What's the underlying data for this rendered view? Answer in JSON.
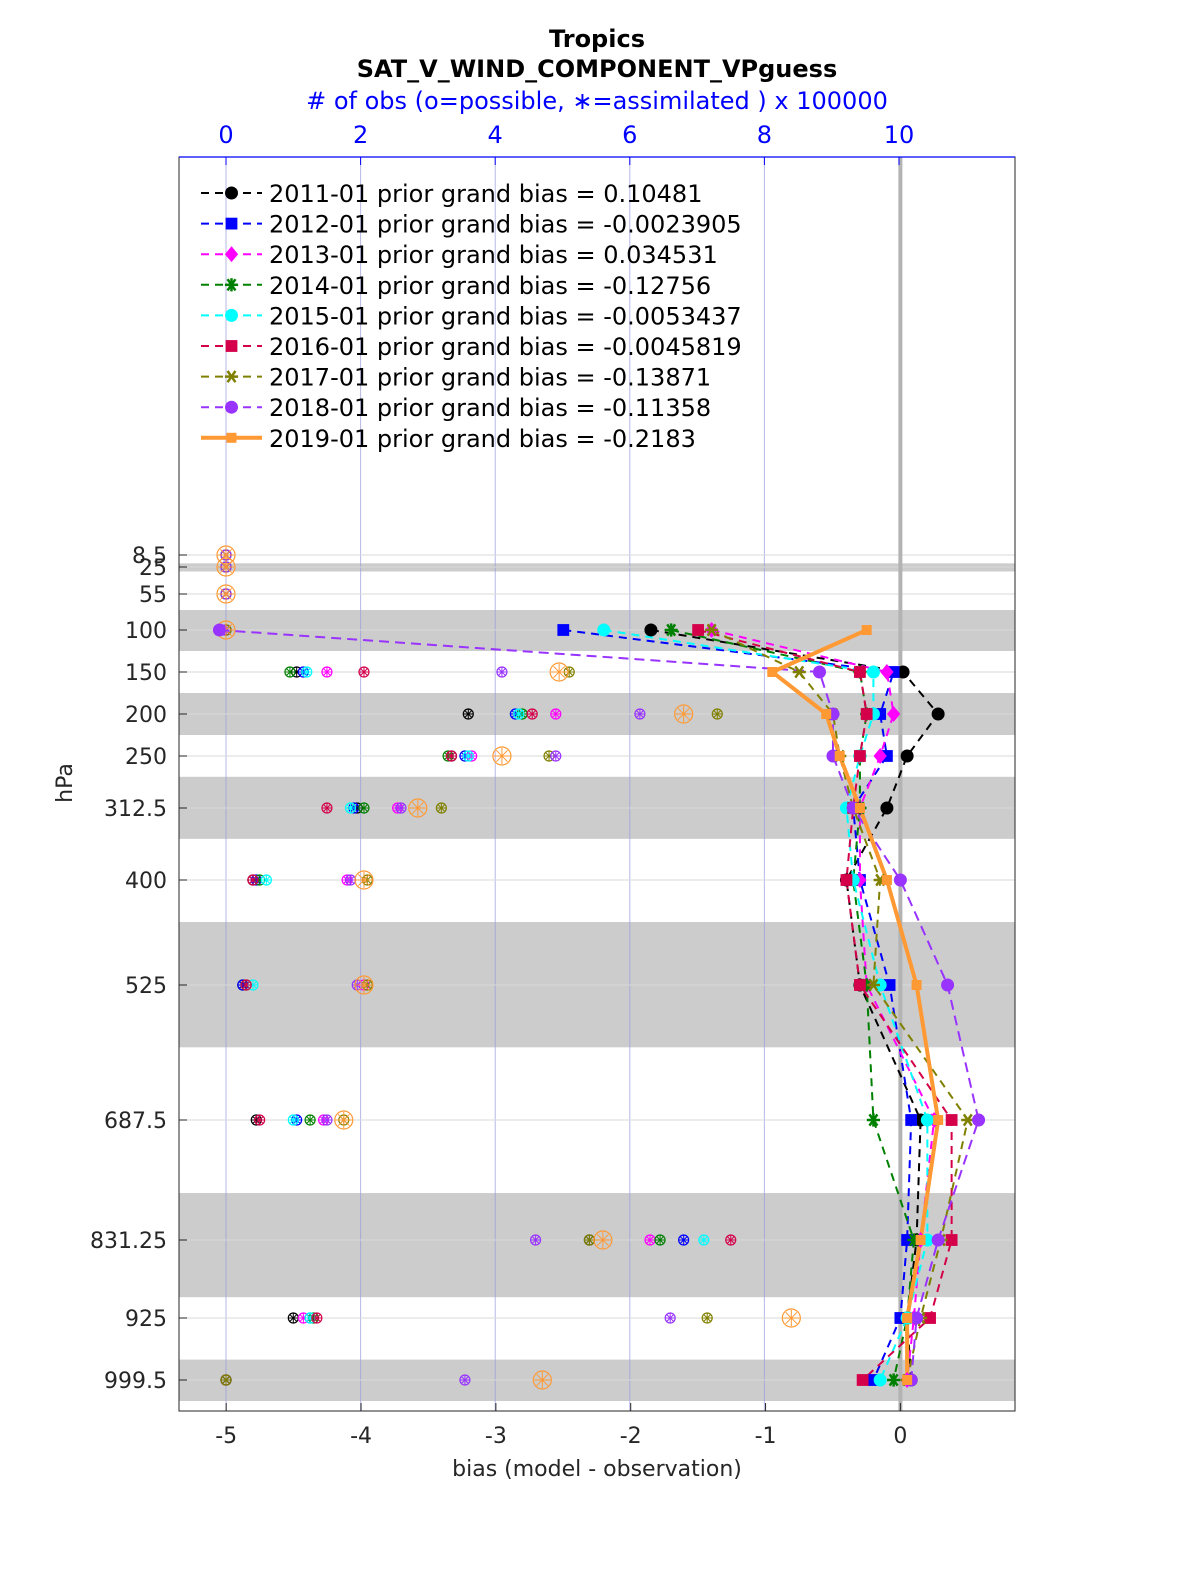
{
  "chart_data": {
    "type": "line",
    "title": "Tropics",
    "subtitle": "SAT_V_WIND_COMPONENT_VPguess",
    "top_axis_label": "# of obs (o=possible, ∗=assimilated ) x 100000",
    "xlabel": "bias (model - observation)",
    "ylabel": "hPa",
    "xlim": [
      -5.35,
      0.85
    ],
    "x_ticks": [
      "-5",
      "-4",
      "-3",
      "-2",
      "-1",
      "0"
    ],
    "x_tick_values": [
      -5,
      -4,
      -3,
      -2,
      -1,
      0
    ],
    "top_ticks": [
      "0",
      "2",
      "4",
      "6",
      "8",
      "10"
    ],
    "top_tick_values": [
      0,
      2,
      4,
      6,
      8,
      10
    ],
    "y_levels": [
      8.5,
      25,
      55,
      100,
      150,
      200,
      250,
      312.5,
      400,
      525,
      687.5,
      831.25,
      925,
      999.5
    ],
    "y_tick_labels": [
      "8.5",
      "25",
      "55",
      "100",
      "150",
      "200",
      "250",
      "312.5",
      "400",
      "525",
      "687.5",
      "831.25",
      "925",
      "999.5"
    ],
    "shaded_bands_hPa": [
      [
        20,
        30
      ],
      [
        75,
        125
      ],
      [
        175,
        225
      ],
      [
        275,
        350
      ],
      [
        450,
        600
      ],
      [
        775,
        900
      ],
      [
        975,
        1025
      ]
    ],
    "zero_line": 0,
    "legend_position": "top-left",
    "series": [
      {
        "name": "2011-01 prior grand bias = 0.10481",
        "color": "#000000",
        "marker": "circle",
        "dash": "8,6",
        "width": 2,
        "bias": [
          null,
          null,
          null,
          -1.85,
          0.02,
          0.28,
          0.05,
          -0.1,
          -0.4,
          -0.3,
          0.15,
          0.12,
          0.05,
          0.08
        ],
        "obs_possible": [
          0,
          0,
          0,
          0,
          1.05,
          3.6,
          3.35,
          1.95,
          0.4,
          0.25,
          0.45,
          5.4,
          1.0,
          0
        ]
      },
      {
        "name": "2012-01 prior grand bias = -0.0023905",
        "color": "#0000ff",
        "marker": "square",
        "dash": "8,6",
        "width": 2,
        "bias": [
          null,
          null,
          null,
          -2.5,
          -0.05,
          -0.15,
          -0.1,
          -0.35,
          -0.3,
          -0.08,
          0.08,
          0.05,
          0.0,
          -0.2
        ],
        "obs_possible": [
          0,
          0,
          0,
          0,
          1.15,
          4.3,
          3.55,
          1.9,
          0.45,
          0.25,
          1.05,
          6.8,
          1.25,
          0
        ]
      },
      {
        "name": "2013-01 prior grand bias = 0.034531",
        "color": "#ff00ff",
        "marker": "diamond",
        "dash": "8,6",
        "width": 2,
        "bias": [
          null,
          null,
          null,
          -1.4,
          -0.1,
          -0.05,
          -0.15,
          -0.3,
          -0.3,
          -0.25,
          0.25,
          0.15,
          0.1,
          0.05
        ],
        "obs_possible": [
          0,
          0,
          0,
          0,
          1.5,
          4.9,
          3.65,
          2.55,
          1.8,
          2.05,
          1.45,
          6.3,
          1.15,
          0
        ]
      },
      {
        "name": "2014-01 prior grand bias = -0.12756",
        "color": "#008000",
        "marker": "star",
        "dash": "8,6",
        "width": 2,
        "bias": [
          null,
          null,
          null,
          -1.7,
          -0.3,
          -0.25,
          -0.3,
          -0.3,
          -0.35,
          -0.25,
          -0.2,
          0.1,
          0.05,
          -0.05
        ],
        "obs_possible": [
          0,
          0,
          0,
          0,
          0.95,
          4.4,
          3.3,
          2.05,
          0.5,
          0.3,
          1.25,
          6.45,
          1.3,
          0
        ]
      },
      {
        "name": "2015-01 prior grand bias = -0.0053437",
        "color": "#00ffff",
        "marker": "circle",
        "dash": "8,6",
        "width": 2,
        "bias": [
          null,
          null,
          null,
          -2.2,
          -0.2,
          -0.2,
          -0.3,
          -0.4,
          -0.35,
          -0.15,
          0.2,
          0.2,
          0.05,
          -0.15
        ],
        "obs_possible": [
          0,
          0,
          0,
          0,
          1.2,
          4.35,
          3.6,
          1.85,
          0.6,
          0.4,
          1.0,
          7.1,
          1.25,
          0
        ]
      },
      {
        "name": "2016-01 prior grand bias = -0.0045819",
        "color": "#d4004a",
        "marker": "square",
        "dash": "8,6",
        "width": 2,
        "bias": [
          null,
          null,
          null,
          -1.5,
          -0.3,
          -0.25,
          -0.3,
          -0.35,
          -0.4,
          -0.3,
          0.38,
          0.38,
          0.22,
          -0.28
        ],
        "obs_possible": [
          0,
          0,
          0,
          0,
          2.05,
          4.55,
          3.35,
          1.5,
          0.4,
          0.3,
          0.5,
          7.5,
          1.35,
          0
        ]
      },
      {
        "name": "2017-01 prior grand bias = -0.13871",
        "color": "#808000",
        "marker": "asterisk",
        "dash": "8,6",
        "width": 2,
        "bias": [
          null,
          null,
          null,
          -1.4,
          -0.75,
          -0.5,
          -0.45,
          -0.35,
          -0.15,
          -0.2,
          0.5,
          0.3,
          0.15,
          0.05
        ],
        "obs_possible": [
          0,
          0,
          0,
          0,
          5.1,
          7.3,
          4.8,
          3.2,
          2.1,
          2.1,
          1.75,
          5.4,
          7.15,
          0
        ]
      },
      {
        "name": "2018-01 prior grand bias = -0.11358",
        "color": "#9933ff",
        "marker": "circle",
        "dash": "10,6",
        "width": 2,
        "bias": [
          null,
          null,
          null,
          -5.05,
          -0.6,
          -0.5,
          -0.5,
          -0.35,
          0.0,
          0.35,
          0.58,
          0.28,
          0.12,
          0.08
        ],
        "obs_possible": [
          0,
          0,
          0,
          -0.05,
          4.1,
          6.15,
          4.9,
          2.6,
          1.85,
          1.95,
          1.5,
          4.6,
          6.6,
          3.55
        ]
      },
      {
        "name": "2019-01 prior grand bias = -0.2183",
        "color": "#ff9933",
        "marker": "square",
        "dash": "",
        "width": 4,
        "bias": [
          null,
          null,
          null,
          -0.25,
          -0.95,
          -0.55,
          -0.45,
          -0.3,
          -0.1,
          0.12,
          0.28,
          0.15,
          0.05,
          0.05
        ],
        "obs_possible": [
          0,
          0,
          0,
          0,
          4.95,
          6.8,
          4.1,
          2.85,
          2.05,
          2.05,
          1.75,
          5.6,
          8.4,
          4.7
        ]
      }
    ]
  }
}
